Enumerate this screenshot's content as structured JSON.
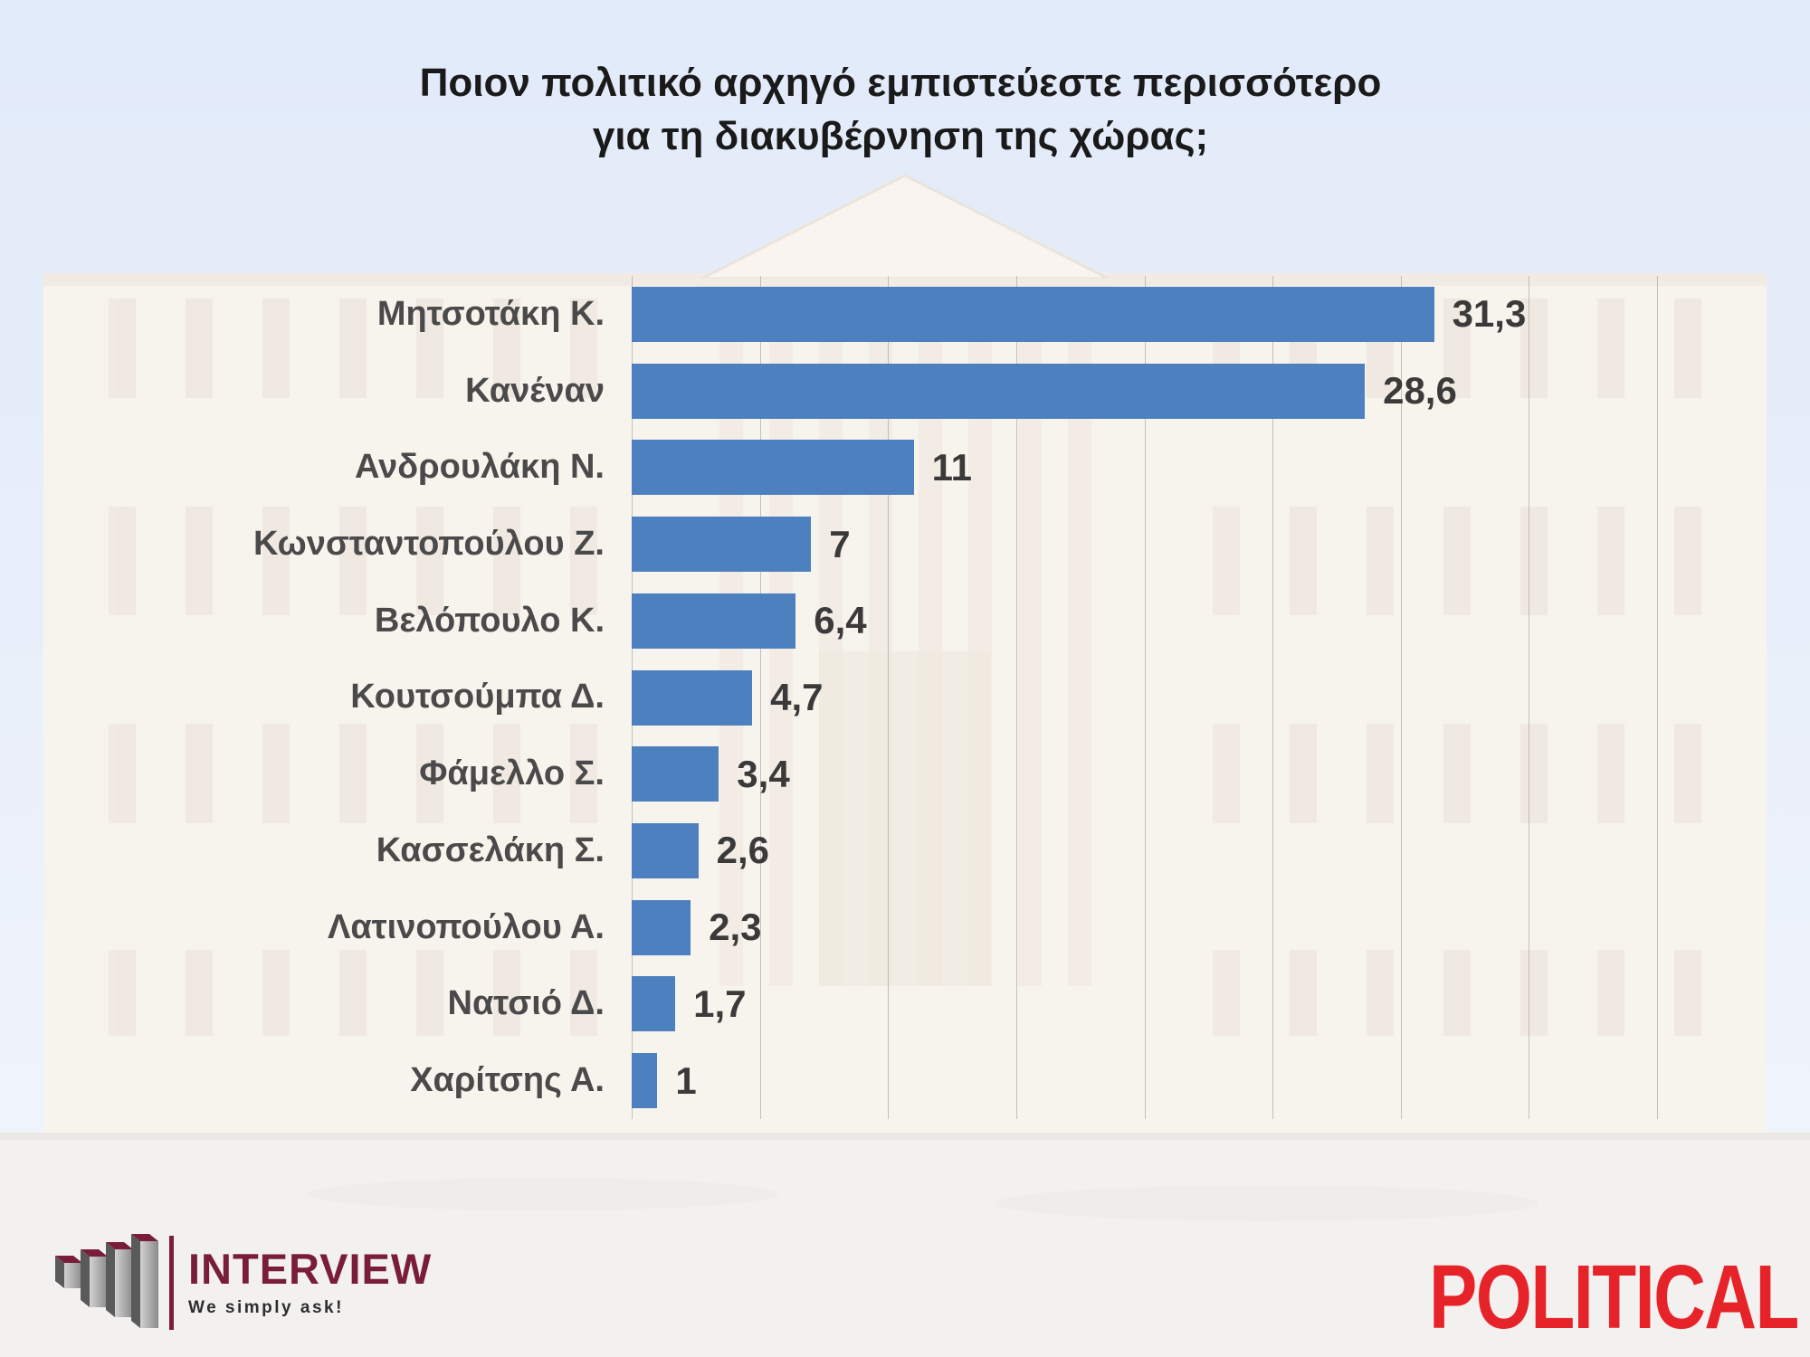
{
  "title": {
    "line1": "Ποιον πολιτικό αρχηγό εμπιστεύεστε περισσότερο",
    "line2": "για τη διακυβέρνηση της χώρας;"
  },
  "chart_data": {
    "type": "bar",
    "orientation": "horizontal",
    "title": "Ποιον πολιτικό αρχηγό εμπιστεύεστε περισσότερο για τη διακυβέρνηση της χώρας;",
    "categories": [
      "Μητσοτάκη Κ.",
      "Κανέναν",
      "Ανδρουλάκη Ν.",
      "Κωνσταντοπούλου Ζ.",
      "Βελόπουλο Κ.",
      "Κουτσούμπα Δ.",
      "Φάμελλο Σ.",
      "Κασσελάκη Σ.",
      "Λατινοπούλου Α.",
      "Νατσιό Δ.",
      "Χαρίτσης Α."
    ],
    "values": [
      31.3,
      28.6,
      11,
      7,
      6.4,
      4.7,
      3.4,
      2.6,
      2.3,
      1.7,
      1
    ],
    "value_labels": [
      "31,3",
      "28,6",
      "11",
      "7",
      "6,4",
      "4,7",
      "3,4",
      "2,6",
      "2,3",
      "1,7",
      "1"
    ],
    "xlabel": "",
    "ylabel": "",
    "xlim": [
      0,
      40
    ],
    "gridline_step": 5,
    "grid": true,
    "legend": false,
    "bar_color": "#4d80bf",
    "category_label_color": "#4a4a4a",
    "value_label_color": "#3a3a3a"
  },
  "branding": {
    "interview": {
      "name": "INTERVIEW",
      "tagline": "We simply ask!",
      "brand_color": "#7a1d3b"
    },
    "political": {
      "name": "POLITICAL",
      "color": "#e62329"
    }
  }
}
